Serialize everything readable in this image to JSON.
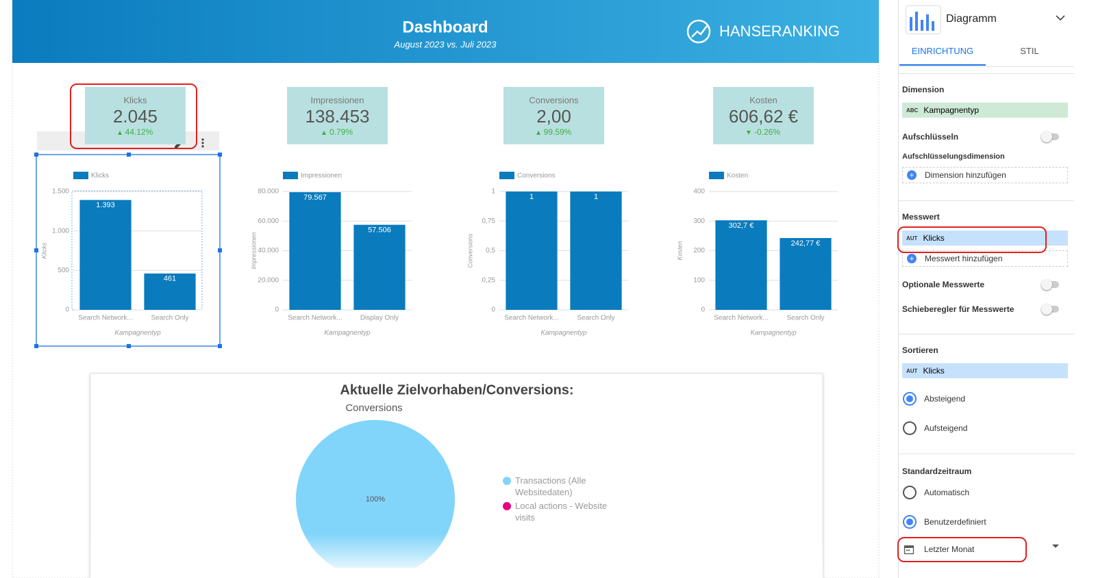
{
  "header": {
    "title": "Dashboard",
    "subtitle": "August 2023 vs. Juli 2023",
    "brand": "HANSERANKING"
  },
  "scorecards": [
    {
      "label": "Klicks",
      "value": "2.045",
      "delta": "44.12%",
      "direction": "up"
    },
    {
      "label": "Impressionen",
      "value": "138.453",
      "delta": "0.79%",
      "direction": "up"
    },
    {
      "label": "Conversions",
      "value": "2,00",
      "delta": "99.59%",
      "direction": "up"
    },
    {
      "label": "Kosten",
      "value": "606,62 €",
      "delta": "-0.26%",
      "direction": "down"
    }
  ],
  "chart_data": [
    {
      "type": "bar",
      "categories": [
        "Search Network...",
        "Search Only"
      ],
      "series": [
        {
          "name": "Klicks",
          "color": "#0a7bbd",
          "values": [
            1393,
            461
          ],
          "value_labels": [
            "1.393",
            "461"
          ]
        }
      ],
      "ylim": [
        0,
        1500
      ],
      "yticks": [
        0,
        500,
        {
          "value": 1000,
          "label": "1.000"
        },
        {
          "value": 1500,
          "label": "1.500"
        }
      ],
      "y_label": "Klicks",
      "x_label": "Kampagnentyp",
      "grid": true
    },
    {
      "type": "bar",
      "categories": [
        "Search Network...",
        "Display Only"
      ],
      "series": [
        {
          "name": "Impressionen",
          "color": "#0a7bbd",
          "values": [
            79567,
            57506
          ],
          "value_labels": [
            "79.567",
            "57.506"
          ]
        }
      ],
      "ylim": [
        0,
        80000
      ],
      "yticks": [
        0,
        {
          "value": 20000,
          "label": "20.000"
        },
        {
          "value": 40000,
          "label": "40.000"
        },
        {
          "value": 60000,
          "label": "60.000"
        },
        {
          "value": 80000,
          "label": "80.000"
        }
      ],
      "y_label": "Impressionen",
      "x_label": "Kampagnentyp",
      "grid": true
    },
    {
      "type": "bar",
      "categories": [
        "Search Network...",
        "Search Only"
      ],
      "series": [
        {
          "name": "Conversions",
          "color": "#0a7bbd",
          "values": [
            1,
            1
          ]
        }
      ],
      "ylim": [
        0,
        1
      ],
      "yticks": [
        0,
        {
          "value": 0.25,
          "label": "0,25"
        },
        {
          "value": 0.5,
          "label": "0,5"
        },
        {
          "value": 0.75,
          "label": "0,75"
        },
        1
      ],
      "y_label": "Conversions",
      "x_label": "Kampagnentyp",
      "grid": true
    },
    {
      "type": "bar",
      "categories": [
        "Search Network...",
        "Search Only"
      ],
      "series": [
        {
          "name": "Kosten",
          "color": "#0a7bbd",
          "values": [
            302.7,
            242.77
          ],
          "value_labels": [
            "302,7 €",
            "242,77 €"
          ]
        }
      ],
      "ylim": [
        0,
        400
      ],
      "yticks": [
        0,
        100,
        200,
        300,
        400
      ],
      "y_label": "Kosten",
      "x_label": "Kampagnentyp",
      "grid": true
    },
    {
      "type": "pie",
      "title": "Aktuelle Zielvorhaben/Conversions:",
      "subtitle": "Conversions",
      "categories": [
        "Transactions (Alle Websitedaten)",
        "Local actions - Website visits"
      ],
      "values": [
        100,
        0
      ],
      "value_labels": [
        "100%",
        null
      ],
      "colors": [
        "#81d4fa",
        "#e6007e"
      ]
    }
  ],
  "sidebar": {
    "title": "Diagramm",
    "tabs": [
      "EINRICHTUNG",
      "STIL"
    ],
    "active_tab": 0,
    "dimension_heading": "Dimension",
    "dimension": {
      "badge": "ABC",
      "label": "Kampagnentyp"
    },
    "breakdown": "Aufschlüsseln",
    "breakdown_dimension_heading": "Aufschlüsselungsdimension",
    "add_dimension": "Dimension hinzufügen",
    "metric_heading": "Messwert",
    "metric": {
      "badge": "AUT",
      "label": "Klicks"
    },
    "add_metric": "Messwert hinzufügen",
    "optional_metrics": "Optionale Messwerte",
    "metric_slider": "Schieberegler für Messwerte",
    "sort_heading": "Sortieren",
    "sort": {
      "badge": "AUT",
      "label": "Klicks"
    },
    "sort_options": [
      "Absteigend",
      "Aufsteigend"
    ],
    "sort_selected": 0,
    "date_heading": "Standardzeitraum",
    "date_options": [
      "Automatisch",
      "Benutzerdefiniert"
    ],
    "date_selected": 1,
    "date_range": "Letzter Monat"
  }
}
